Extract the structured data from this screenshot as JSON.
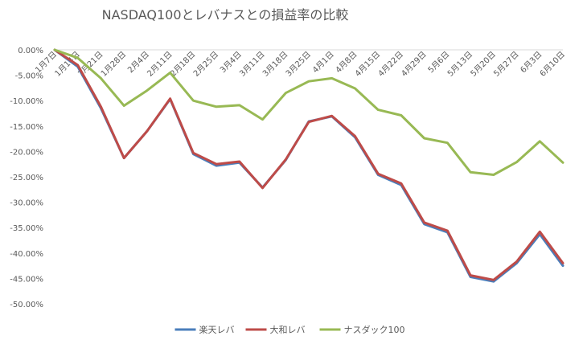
{
  "chart_data": {
    "type": "line",
    "title": "NASDAQ100とレバナスとの損益率の比較",
    "xlabel": "",
    "ylabel": "",
    "ylim": [
      -0.5,
      0.0
    ],
    "yticks": [
      "0.00%",
      "-5.00%",
      "-10.00%",
      "-15.00%",
      "-20.00%",
      "-25.00%",
      "-30.00%",
      "-35.00%",
      "-40.00%",
      "-45.00%",
      "-50.00%"
    ],
    "categories": [
      "1月7日",
      "1月14日",
      "1月21日",
      "1月28日",
      "2月4日",
      "2月11日",
      "2月18日",
      "2月25日",
      "3月4日",
      "3月11日",
      "3月18日",
      "3月25日",
      "4月1日",
      "4月8日",
      "4月15日",
      "4月22日",
      "4月29日",
      "5月6日",
      "5月13日",
      "5月20日",
      "5月27日",
      "6月3日",
      "6月10日"
    ],
    "legend_position": "bottom",
    "grid": false,
    "series": [
      {
        "name": "楽天レバ",
        "color": "#4a7ebb",
        "values": [
          0.0,
          -0.033,
          -0.115,
          -0.213,
          -0.16,
          -0.097,
          -0.205,
          -0.228,
          -0.222,
          -0.271,
          -0.217,
          -0.141,
          -0.131,
          -0.172,
          -0.246,
          -0.266,
          -0.343,
          -0.359,
          -0.447,
          -0.456,
          -0.42,
          -0.363,
          -0.425
        ]
      },
      {
        "name": "大和レバ",
        "color": "#be4b48",
        "values": [
          0.0,
          -0.03,
          -0.112,
          -0.213,
          -0.16,
          -0.096,
          -0.203,
          -0.225,
          -0.22,
          -0.272,
          -0.216,
          -0.142,
          -0.13,
          -0.17,
          -0.244,
          -0.263,
          -0.34,
          -0.356,
          -0.444,
          -0.453,
          -0.417,
          -0.358,
          -0.42
        ]
      },
      {
        "name": "ナスダック100",
        "color": "#98b954",
        "values": [
          0.0,
          -0.016,
          -0.056,
          -0.11,
          -0.08,
          -0.045,
          -0.1,
          -0.112,
          -0.109,
          -0.137,
          -0.085,
          -0.062,
          -0.056,
          -0.076,
          -0.118,
          -0.129,
          -0.174,
          -0.183,
          -0.241,
          -0.246,
          -0.221,
          -0.18,
          -0.222
        ]
      }
    ]
  }
}
